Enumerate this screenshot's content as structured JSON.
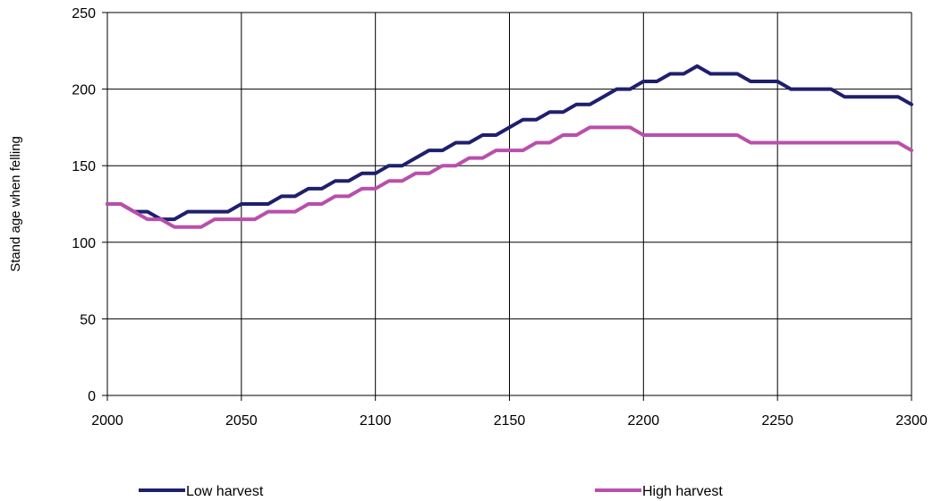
{
  "chart_data": {
    "type": "line",
    "title": "",
    "xlabel": "",
    "ylabel": "Stand  age when felling",
    "xlim": [
      2000,
      2300
    ],
    "ylim": [
      0,
      250
    ],
    "x_ticks": [
      2000,
      2050,
      2100,
      2150,
      2200,
      2250,
      2300
    ],
    "y_ticks": [
      0,
      50,
      100,
      150,
      200,
      250
    ],
    "x_tick_labels": [
      "2000",
      "2050",
      "2100",
      "2150",
      "2200",
      "2250",
      "2300"
    ],
    "y_tick_labels": [
      "0",
      "50",
      "100",
      "150",
      "200",
      "250"
    ],
    "grid": true,
    "legend_position": "bottom",
    "x": [
      2000,
      2005,
      2010,
      2015,
      2020,
      2025,
      2030,
      2035,
      2040,
      2045,
      2050,
      2055,
      2060,
      2065,
      2070,
      2075,
      2080,
      2085,
      2090,
      2095,
      2100,
      2105,
      2110,
      2115,
      2120,
      2125,
      2130,
      2135,
      2140,
      2145,
      2150,
      2155,
      2160,
      2165,
      2170,
      2175,
      2180,
      2185,
      2190,
      2195,
      2200,
      2205,
      2210,
      2215,
      2220,
      2225,
      2230,
      2235,
      2240,
      2245,
      2250,
      2255,
      2260,
      2265,
      2270,
      2275,
      2280,
      2285,
      2290,
      2295,
      2300
    ],
    "series": [
      {
        "name": "Low harvest",
        "color": "#1f1f6e",
        "values": [
          125,
          125,
          120,
          120,
          115,
          115,
          120,
          120,
          120,
          120,
          125,
          125,
          125,
          130,
          130,
          135,
          135,
          140,
          140,
          145,
          145,
          150,
          150,
          155,
          160,
          160,
          165,
          165,
          170,
          170,
          175,
          180,
          180,
          185,
          185,
          190,
          190,
          195,
          200,
          200,
          205,
          205,
          210,
          210,
          215,
          210,
          210,
          210,
          205,
          205,
          205,
          200,
          200,
          200,
          200,
          195,
          195,
          195,
          195,
          195,
          190
        ]
      },
      {
        "name": "High harvest",
        "color": "#b94fab",
        "values": [
          125,
          125,
          120,
          115,
          115,
          110,
          110,
          110,
          115,
          115,
          115,
          115,
          120,
          120,
          120,
          125,
          125,
          130,
          130,
          135,
          135,
          140,
          140,
          145,
          145,
          150,
          150,
          155,
          155,
          160,
          160,
          160,
          165,
          165,
          170,
          170,
          175,
          175,
          175,
          175,
          170,
          170,
          170,
          170,
          170,
          170,
          170,
          170,
          165,
          165,
          165,
          165,
          165,
          165,
          165,
          165,
          165,
          165,
          165,
          165,
          160
        ]
      }
    ]
  }
}
